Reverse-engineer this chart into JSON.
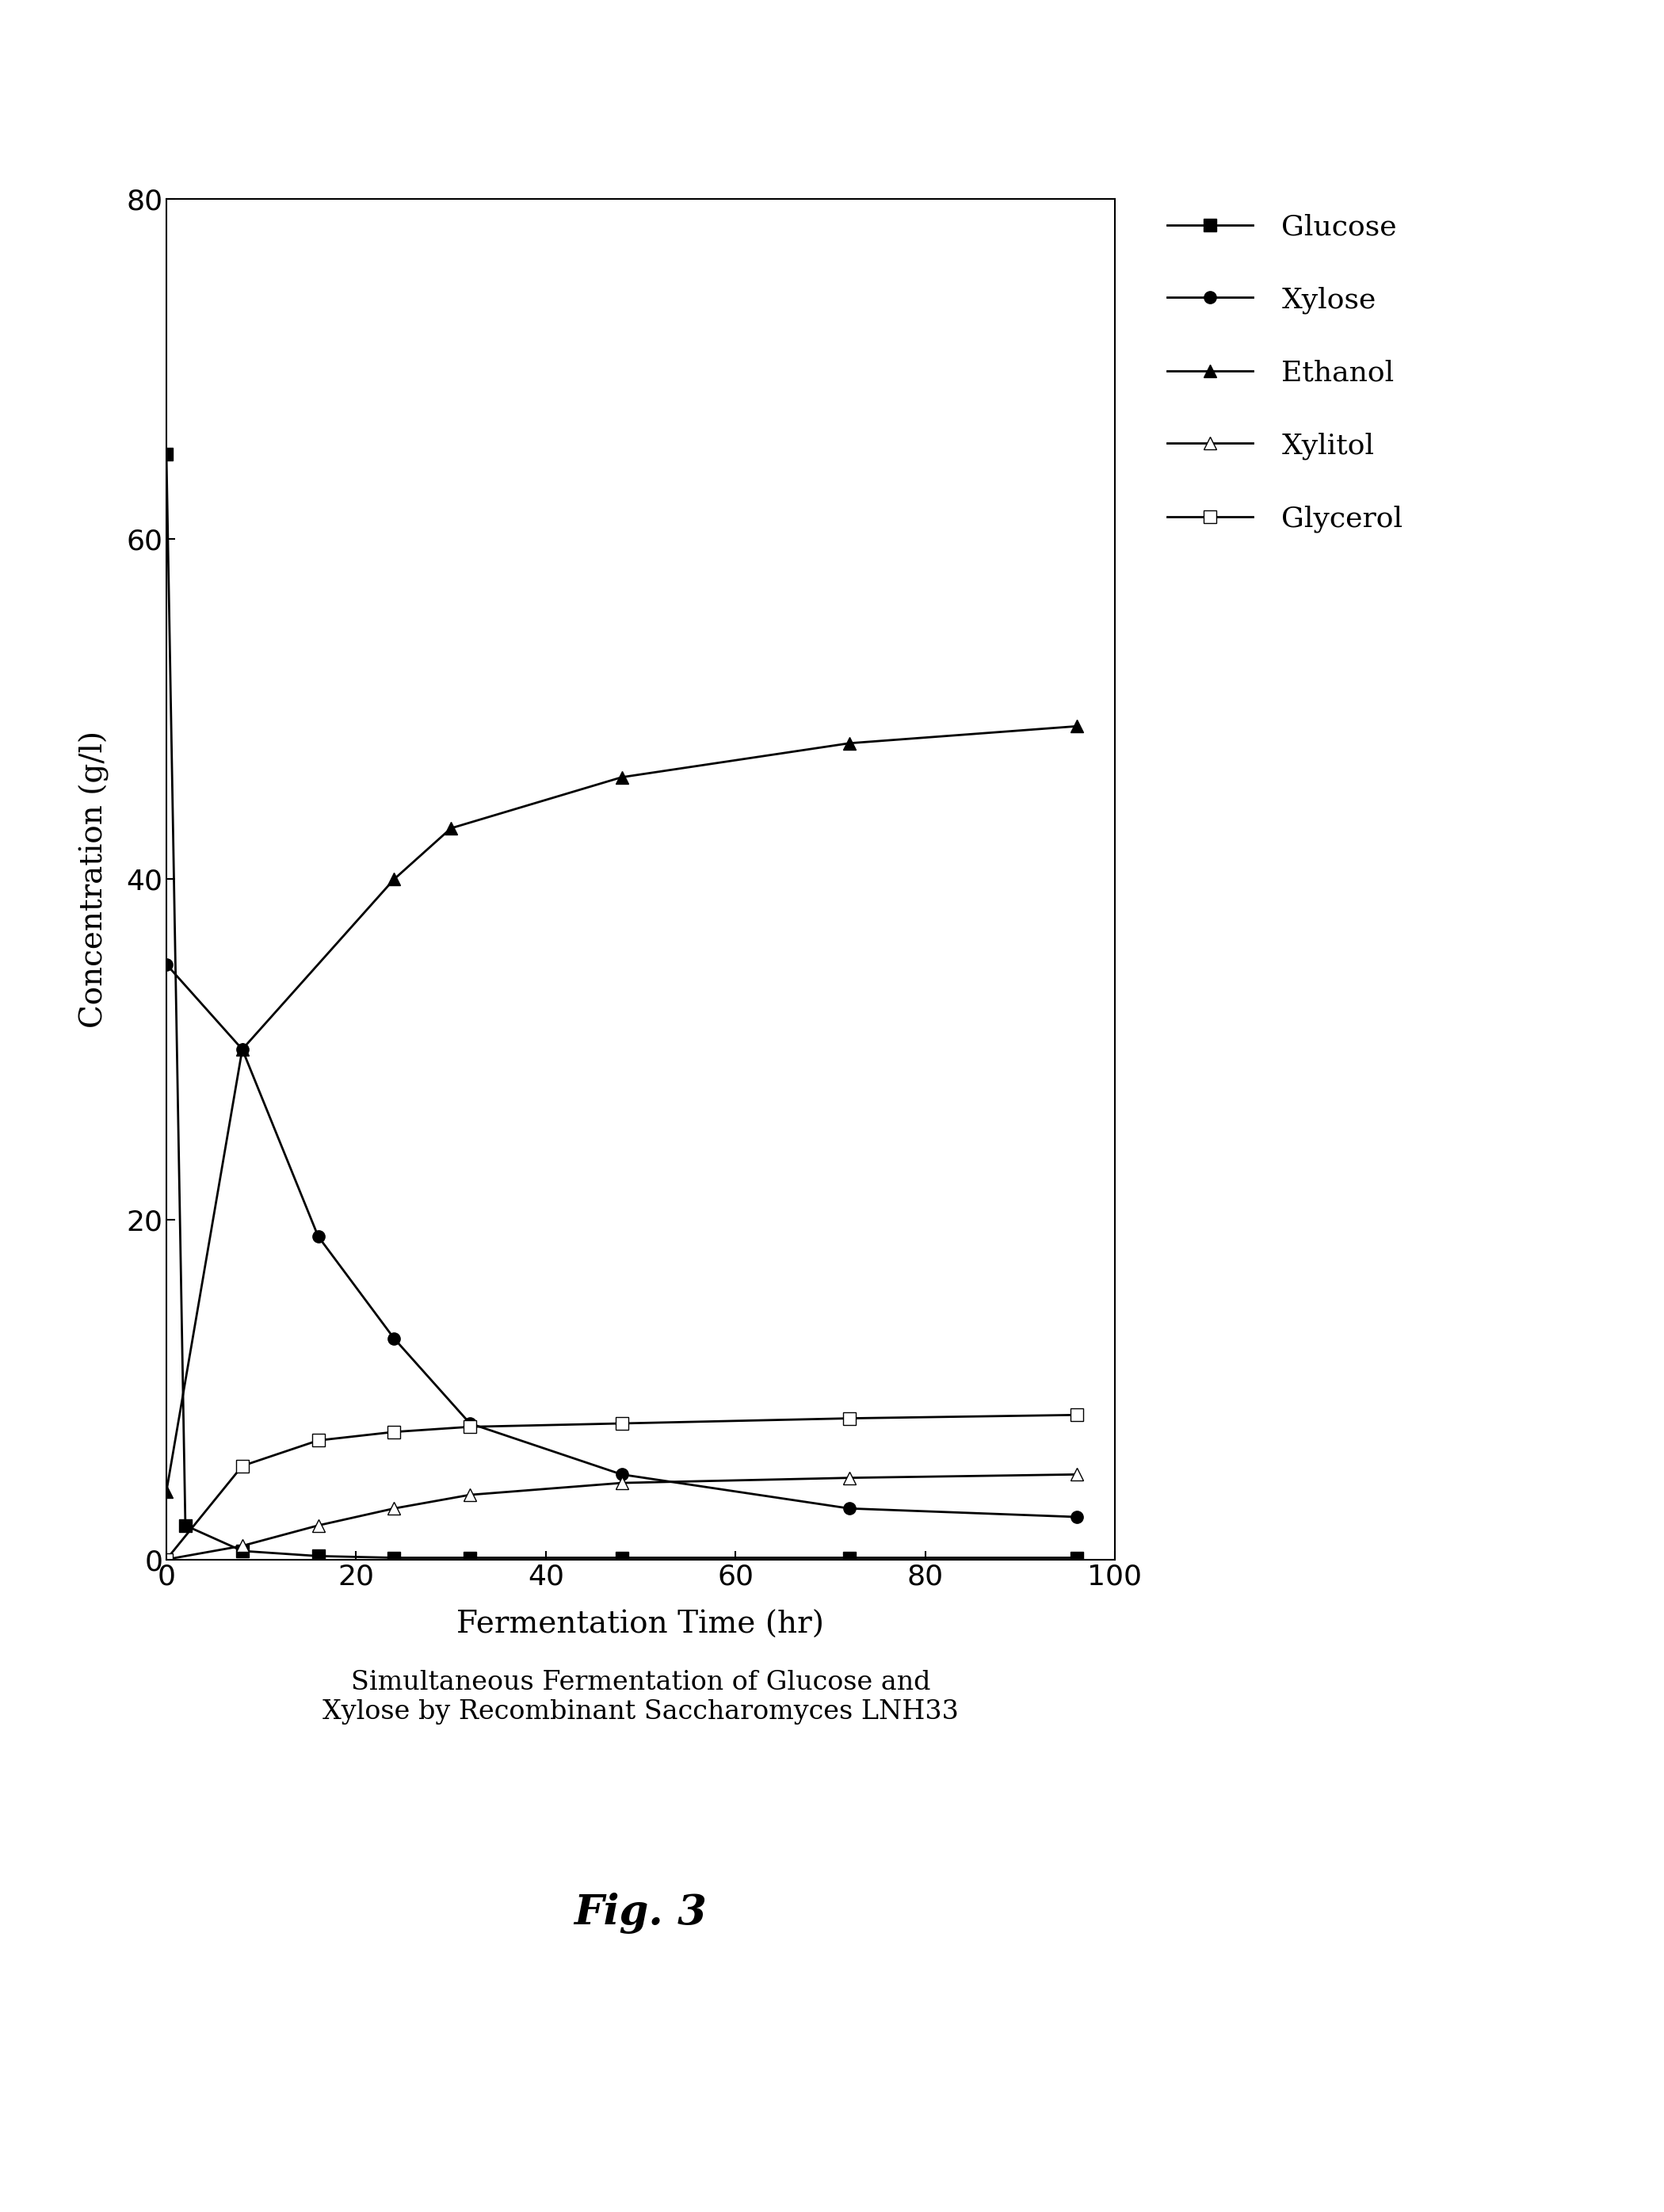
{
  "glucose_x": [
    0,
    2,
    8,
    16,
    24,
    32,
    48,
    72,
    96
  ],
  "glucose_y": [
    65,
    2.0,
    0.5,
    0.2,
    0.1,
    0.1,
    0.1,
    0.1,
    0.1
  ],
  "xylose_x": [
    0,
    8,
    16,
    24,
    32,
    48,
    72,
    96
  ],
  "xylose_y": [
    35,
    30,
    19,
    13,
    8,
    5,
    3,
    2.5
  ],
  "ethanol_x": [
    0,
    8,
    24,
    30,
    48,
    72,
    96
  ],
  "ethanol_y": [
    4,
    30,
    40,
    43,
    46,
    48,
    49
  ],
  "xylitol_x": [
    0,
    8,
    16,
    24,
    32,
    48,
    72,
    96
  ],
  "xylitol_y": [
    0.0,
    0.8,
    2.0,
    3.0,
    3.8,
    4.5,
    4.8,
    5.0
  ],
  "glycerol_x": [
    0,
    8,
    16,
    24,
    32,
    48,
    72,
    96
  ],
  "glycerol_y": [
    0.0,
    5.5,
    7.0,
    7.5,
    7.8,
    8.0,
    8.3,
    8.5
  ],
  "xlabel": "Fermentation Time (hr)",
  "ylabel": "Concentration (g/l)",
  "xlim": [
    0,
    100
  ],
  "ylim": [
    0,
    80
  ],
  "xticks": [
    0,
    20,
    40,
    60,
    80,
    100
  ],
  "yticks": [
    0,
    20,
    40,
    60,
    80
  ],
  "legend_labels": [
    "Glucose",
    "Xylose",
    "Ethanol",
    "Xylitol",
    "Glycerol"
  ],
  "subtitle": "Simultaneous Fermentation of Glucose and\nXylose by Recombinant Saccharomyces LNH33",
  "fig_label": "Fig. 3",
  "background_color": "#ffffff",
  "line_color": "#000000"
}
